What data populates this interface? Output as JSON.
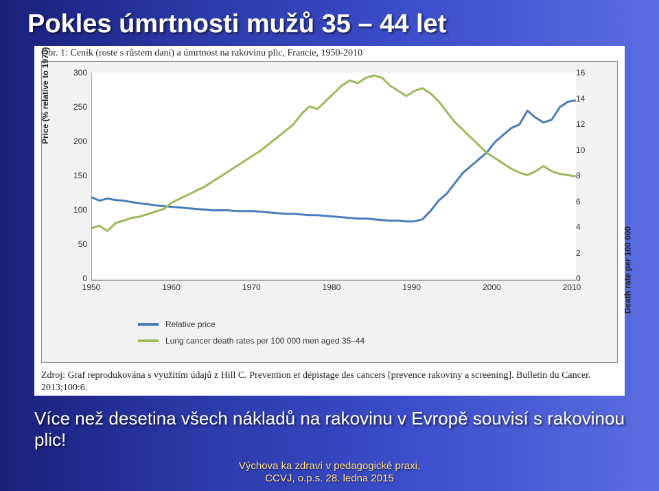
{
  "title": "Pokles úmrtnosti mužů 35 – 44 let",
  "chart": {
    "caption_top": "Obr. 1: Ceník (roste s růstem daní) a úmrtnost na rakovinu plic, Francie, 1950-2010",
    "citation": "Zdroj: Graf reprodukována s využitím údajů z Hill C. Prevention et dépistage des cancers [prevence rakoviny a screening]. Bulletin du Cancer. 2013;100:6.",
    "background_color": "#f2f2f2",
    "plot_background": "#ffffff",
    "border_color": "#888888",
    "y_left": {
      "label": "Price (% relative to 1970)",
      "min": 0,
      "max": 300,
      "step": 50,
      "ticks": [
        0,
        50,
        100,
        150,
        200,
        250,
        300
      ]
    },
    "y_right": {
      "label": "Death rate per 100 000",
      "min": 0,
      "max": 16,
      "step": 2,
      "ticks": [
        0,
        2,
        4,
        6,
        8,
        10,
        12,
        14,
        16
      ]
    },
    "x": {
      "min": 1950,
      "max": 2010,
      "step": 10,
      "ticks": [
        1950,
        1960,
        1970,
        1980,
        1990,
        2000,
        2010
      ]
    },
    "series": [
      {
        "name": "Relative price",
        "legend": "Relative price",
        "color": "#4a7ebb",
        "line_width": 3,
        "axis": "left",
        "data": [
          [
            1950,
            120
          ],
          [
            1951,
            115
          ],
          [
            1952,
            118
          ],
          [
            1953,
            116
          ],
          [
            1954,
            115
          ],
          [
            1955,
            113
          ],
          [
            1956,
            111
          ],
          [
            1957,
            110
          ],
          [
            1958,
            108
          ],
          [
            1959,
            107
          ],
          [
            1960,
            106
          ],
          [
            1961,
            105
          ],
          [
            1962,
            104
          ],
          [
            1963,
            103
          ],
          [
            1964,
            102
          ],
          [
            1965,
            101
          ],
          [
            1966,
            101
          ],
          [
            1967,
            101
          ],
          [
            1968,
            100
          ],
          [
            1969,
            100
          ],
          [
            1970,
            100
          ],
          [
            1971,
            99
          ],
          [
            1972,
            98
          ],
          [
            1973,
            97
          ],
          [
            1974,
            96
          ],
          [
            1975,
            96
          ],
          [
            1976,
            95
          ],
          [
            1977,
            94
          ],
          [
            1978,
            94
          ],
          [
            1979,
            93
          ],
          [
            1980,
            92
          ],
          [
            1981,
            91
          ],
          [
            1982,
            90
          ],
          [
            1983,
            89
          ],
          [
            1984,
            89
          ],
          [
            1985,
            88
          ],
          [
            1986,
            87
          ],
          [
            1987,
            86
          ],
          [
            1988,
            86
          ],
          [
            1989,
            85
          ],
          [
            1990,
            85
          ],
          [
            1991,
            88
          ],
          [
            1992,
            100
          ],
          [
            1993,
            115
          ],
          [
            1994,
            125
          ],
          [
            1995,
            140
          ],
          [
            1996,
            155
          ],
          [
            1997,
            165
          ],
          [
            1998,
            175
          ],
          [
            1999,
            185
          ],
          [
            2000,
            200
          ],
          [
            2001,
            210
          ],
          [
            2002,
            220
          ],
          [
            2003,
            225
          ],
          [
            2004,
            245
          ],
          [
            2005,
            235
          ],
          [
            2006,
            228
          ],
          [
            2007,
            232
          ],
          [
            2008,
            250
          ],
          [
            2009,
            258
          ],
          [
            2010,
            260
          ]
        ]
      },
      {
        "name": "Lung cancer death rates",
        "legend": "Lung cancer death rates per 100 000 men aged 35–44",
        "color": "#9bbb59",
        "line_width": 3,
        "axis": "right",
        "data": [
          [
            1950,
            4.0
          ],
          [
            1951,
            4.2
          ],
          [
            1952,
            3.8
          ],
          [
            1953,
            4.4
          ],
          [
            1954,
            4.6
          ],
          [
            1955,
            4.8
          ],
          [
            1956,
            4.9
          ],
          [
            1957,
            5.1
          ],
          [
            1958,
            5.3
          ],
          [
            1959,
            5.5
          ],
          [
            1960,
            6.0
          ],
          [
            1961,
            6.3
          ],
          [
            1962,
            6.6
          ],
          [
            1963,
            6.9
          ],
          [
            1964,
            7.2
          ],
          [
            1965,
            7.6
          ],
          [
            1966,
            8.0
          ],
          [
            1967,
            8.4
          ],
          [
            1968,
            8.8
          ],
          [
            1969,
            9.2
          ],
          [
            1970,
            9.6
          ],
          [
            1971,
            10.0
          ],
          [
            1972,
            10.5
          ],
          [
            1973,
            11.0
          ],
          [
            1974,
            11.5
          ],
          [
            1975,
            12.0
          ],
          [
            1976,
            12.8
          ],
          [
            1977,
            13.4
          ],
          [
            1978,
            13.2
          ],
          [
            1979,
            13.8
          ],
          [
            1980,
            14.4
          ],
          [
            1981,
            15.0
          ],
          [
            1982,
            15.4
          ],
          [
            1983,
            15.2
          ],
          [
            1984,
            15.6
          ],
          [
            1985,
            15.8
          ],
          [
            1986,
            15.6
          ],
          [
            1987,
            15.0
          ],
          [
            1988,
            14.6
          ],
          [
            1989,
            14.2
          ],
          [
            1990,
            14.6
          ],
          [
            1991,
            14.8
          ],
          [
            1992,
            14.4
          ],
          [
            1993,
            13.8
          ],
          [
            1994,
            13.0
          ],
          [
            1995,
            12.2
          ],
          [
            1996,
            11.6
          ],
          [
            1997,
            11.0
          ],
          [
            1998,
            10.4
          ],
          [
            1999,
            9.8
          ],
          [
            2000,
            9.4
          ],
          [
            2001,
            9.0
          ],
          [
            2002,
            8.6
          ],
          [
            2003,
            8.3
          ],
          [
            2004,
            8.1
          ],
          [
            2005,
            8.4
          ],
          [
            2006,
            8.8
          ],
          [
            2007,
            8.4
          ],
          [
            2008,
            8.2
          ],
          [
            2009,
            8.1
          ],
          [
            2010,
            8.0
          ]
        ]
      }
    ],
    "legend_fontsize": 12,
    "tick_fontsize": 12,
    "label_fontsize": 12
  },
  "subtitle": "Více než desetina všech nákladů na rakovinu v Evropě souvisí s rakovinou plic!",
  "footer_line1": "Výchova ka zdraví v pedagogické praxi,",
  "footer_line2": "CCVJ, o.p.s. 28. ledna 2015"
}
